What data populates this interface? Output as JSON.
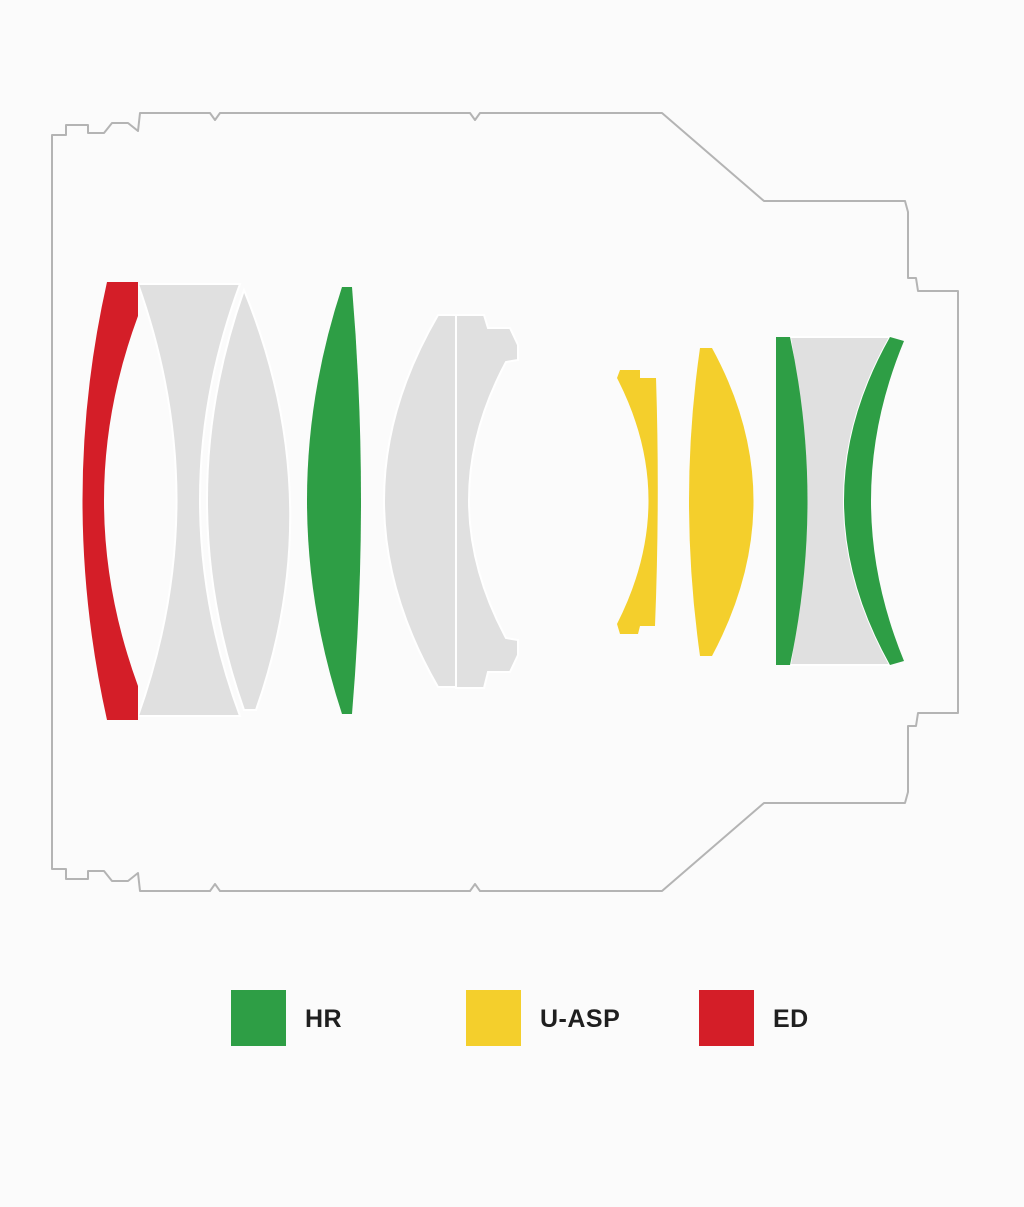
{
  "colors": {
    "background": "#fbfbfb",
    "barrel_outline": "#b4b4b4",
    "standard_element": "#e0e0e0",
    "standard_edge": "#ffffff",
    "HR": "#2e9e45",
    "U-ASP": "#f4cf2c",
    "ED": "#d41e28"
  },
  "lens_elements": [
    {
      "id": 1,
      "type": "ED"
    },
    {
      "id": 2,
      "type": "standard"
    },
    {
      "id": 3,
      "type": "standard"
    },
    {
      "id": 4,
      "type": "HR"
    },
    {
      "id": 5,
      "type": "standard"
    },
    {
      "id": 6,
      "type": "standard"
    },
    {
      "id": 7,
      "type": "U-ASP"
    },
    {
      "id": 8,
      "type": "U-ASP"
    },
    {
      "id": 9,
      "type": "HR"
    },
    {
      "id": 10,
      "type": "standard"
    },
    {
      "id": 11,
      "type": "HR"
    }
  ],
  "legend": [
    {
      "key": "HR",
      "label": "HR",
      "color": "#2e9e45"
    },
    {
      "key": "U-ASP",
      "label": "U-ASP",
      "color": "#f4cf2c"
    },
    {
      "key": "ED",
      "label": "ED",
      "color": "#d41e28"
    }
  ]
}
